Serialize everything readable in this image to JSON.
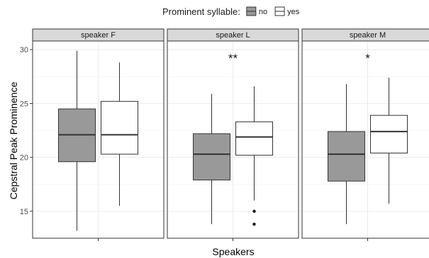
{
  "chart_data": {
    "type": "boxplot",
    "legend": {
      "title": "Prominent syllable:",
      "position": "top",
      "items": [
        {
          "label": "no",
          "fill": "#999999"
        },
        {
          "label": "yes",
          "fill": "#ffffff"
        }
      ]
    },
    "xlabel": "Speakers",
    "ylabel": "Cepstral Peak Prominence",
    "ylim": [
      12.5,
      30.8
    ],
    "yticks": [
      15,
      20,
      25,
      30
    ],
    "grid": true,
    "panels": [
      {
        "strip": "speaker F",
        "annotation": "",
        "boxes": [
          {
            "group": "no",
            "min": 13.2,
            "q1": 19.6,
            "median": 22.1,
            "q3": 24.5,
            "max": 29.9,
            "outliers": []
          },
          {
            "group": "yes",
            "min": 15.5,
            "q1": 20.3,
            "median": 22.1,
            "q3": 25.2,
            "max": 28.8,
            "outliers": []
          }
        ]
      },
      {
        "strip": "speaker L",
        "annotation": "**",
        "boxes": [
          {
            "group": "no",
            "min": 13.8,
            "q1": 17.9,
            "median": 20.3,
            "q3": 22.2,
            "max": 25.9,
            "outliers": []
          },
          {
            "group": "yes",
            "min": 16.0,
            "q1": 20.2,
            "median": 21.9,
            "q3": 23.3,
            "max": 26.6,
            "outliers": [
              15.0,
              13.8
            ]
          }
        ]
      },
      {
        "strip": "speaker M",
        "annotation": "*",
        "boxes": [
          {
            "group": "no",
            "min": 13.8,
            "q1": 17.8,
            "median": 20.3,
            "q3": 22.4,
            "max": 26.8,
            "outliers": []
          },
          {
            "group": "yes",
            "min": 15.7,
            "q1": 20.4,
            "median": 22.4,
            "q3": 23.9,
            "max": 27.4,
            "outliers": []
          }
        ]
      }
    ]
  }
}
